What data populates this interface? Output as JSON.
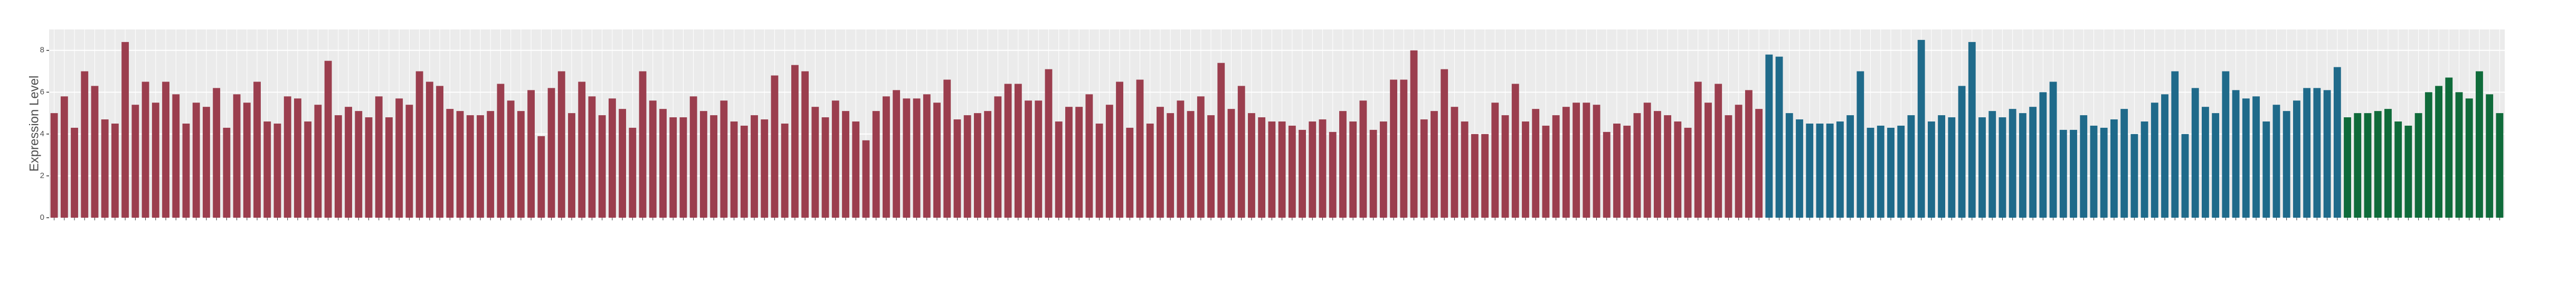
{
  "chart_data": {
    "type": "bar",
    "y_label": "Expression Level",
    "ylim": [
      0,
      9
    ],
    "yticks": [
      0,
      2,
      4,
      6,
      8
    ],
    "grid": true,
    "series": [
      {
        "color": "#9b3e4e",
        "values": [
          5.0,
          5.8,
          4.3,
          7.0,
          6.3,
          4.7,
          4.5,
          8.4,
          5.4,
          6.5,
          5.5,
          6.5,
          5.9,
          4.5,
          5.5,
          5.3,
          6.2,
          4.3,
          5.9,
          5.5,
          6.5,
          4.6,
          4.5,
          5.8,
          5.7,
          4.6,
          5.4,
          7.5,
          4.9,
          5.3,
          5.1,
          4.8,
          5.8,
          4.8,
          5.7,
          5.4,
          7.0,
          6.5,
          6.3,
          5.2,
          5.1,
          4.9,
          4.9,
          5.1,
          6.4,
          5.6,
          5.1,
          6.1,
          3.9,
          6.2,
          7.0,
          5.0,
          6.5,
          5.8,
          4.9,
          5.7,
          5.2,
          4.3,
          7.0,
          5.6,
          5.2,
          4.8,
          4.8,
          5.8,
          5.1,
          4.9,
          5.6,
          4.6,
          4.4,
          4.9,
          4.7,
          6.8,
          4.5,
          7.3,
          7.0,
          5.3,
          4.8,
          5.6,
          5.1,
          4.6,
          3.7,
          5.1,
          5.8,
          6.1,
          5.7,
          5.7,
          5.9,
          5.5,
          6.6,
          4.7,
          4.9,
          5.0,
          5.1,
          5.8,
          6.4,
          6.4,
          5.6,
          5.6,
          7.1,
          4.6,
          5.3,
          5.3,
          5.9,
          4.5,
          5.4,
          6.5,
          4.3,
          6.6,
          4.5,
          5.3,
          5.0,
          5.6,
          5.1,
          5.8,
          4.9,
          7.4,
          5.2,
          6.3,
          5.0,
          4.8,
          4.6,
          4.6,
          4.4,
          4.2,
          4.6,
          4.7,
          4.1,
          5.1,
          4.6,
          5.6,
          4.2,
          4.6,
          6.6,
          6.6,
          8.0,
          4.7,
          5.1,
          7.1,
          5.3,
          4.6,
          4.0,
          4.0,
          5.5,
          4.9,
          6.4,
          4.6,
          5.2,
          4.4,
          4.9,
          5.3,
          5.5,
          5.5,
          5.4,
          4.1,
          4.5,
          4.4,
          5.0,
          5.5,
          5.1,
          4.9,
          4.6,
          4.3,
          6.5,
          5.5,
          6.4,
          4.9,
          5.4,
          6.1,
          5.2
        ]
      },
      {
        "color": "#1f6a8a",
        "values": [
          7.8,
          7.7,
          5.0,
          4.7,
          4.5,
          4.5,
          4.5,
          4.6,
          4.9,
          7.0,
          4.3,
          4.4,
          4.3,
          4.4,
          4.9,
          8.5,
          4.6,
          4.9,
          4.8,
          6.3,
          8.4,
          4.8,
          5.1,
          4.8,
          5.2,
          5.0,
          5.3,
          6.0,
          6.5,
          4.2,
          4.2,
          4.9,
          4.4,
          4.3,
          4.7,
          5.2,
          4.0,
          4.6,
          5.5,
          5.9,
          7.0,
          4.0,
          6.2,
          5.3,
          5.0,
          7.0,
          6.1,
          5.7,
          5.8,
          4.6,
          5.4,
          5.1,
          5.6,
          6.2,
          6.2,
          6.1,
          7.2
        ]
      },
      {
        "color": "#0f6b3a",
        "values": [
          4.8,
          5.0,
          5.0,
          5.1,
          5.2,
          4.6,
          4.4,
          5.0,
          6.0,
          6.3,
          6.7,
          6.0,
          5.7,
          7.0,
          5.9,
          5.0
        ]
      }
    ]
  }
}
